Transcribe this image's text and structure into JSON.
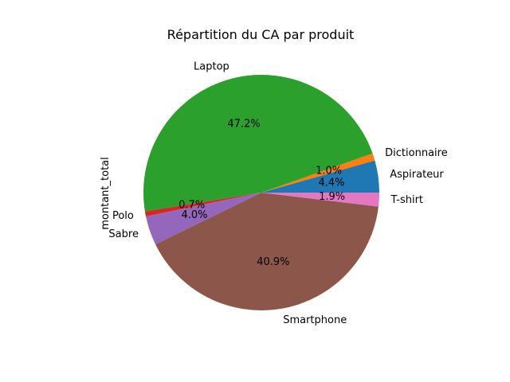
{
  "chart_data": {
    "type": "pie",
    "title": "Répartition du CA par produit",
    "ylabel": "montant_total",
    "slices": [
      {
        "label": "Aspirateur",
        "pct_label": "4.4%",
        "value": 4.4,
        "color": "#1f77b4"
      },
      {
        "label": "Dictionnaire",
        "pct_label": "1.0%",
        "value": 1.0,
        "color": "#ff7f0e"
      },
      {
        "label": "Laptop",
        "pct_label": "47.2%",
        "value": 47.2,
        "color": "#2ca02c"
      },
      {
        "label": "Polo",
        "pct_label": "0.7%",
        "value": 0.7,
        "color": "#d62728"
      },
      {
        "label": "Sabre",
        "pct_label": "4.0%",
        "value": 4.0,
        "color": "#9467bd"
      },
      {
        "label": "Smartphone",
        "pct_label": "40.9%",
        "value": 40.9,
        "color": "#8c564b"
      },
      {
        "label": "T-shirt",
        "pct_label": "1.9%",
        "value": 1.9,
        "color": "#e377c2"
      }
    ]
  }
}
